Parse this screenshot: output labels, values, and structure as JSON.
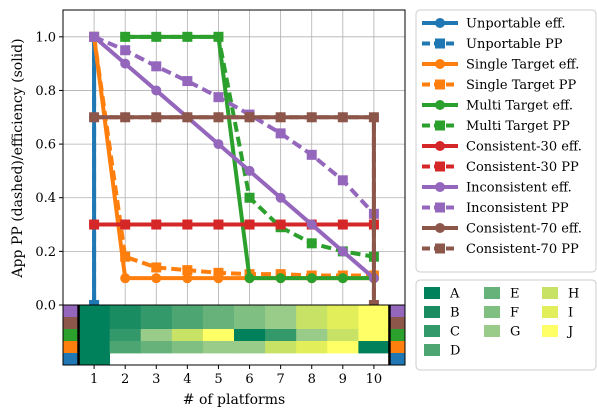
{
  "chart_data": {
    "type": "line",
    "title": "",
    "xlabel": "# of platforms",
    "ylabel": "App PP (dashed)/efficiency (solid)",
    "x": [
      1,
      2,
      3,
      4,
      5,
      6,
      7,
      8,
      9,
      10
    ],
    "xlim": [
      0,
      11
    ],
    "ylim": [
      0,
      1.1
    ],
    "xticks": [
      "1",
      "2",
      "3",
      "4",
      "5",
      "6",
      "7",
      "8",
      "9",
      "10"
    ],
    "yticks": [
      "0.0",
      "0.2",
      "0.4",
      "0.6",
      "0.8",
      "1.0"
    ],
    "grid": true,
    "legend_placement": "outside-right",
    "series": [
      {
        "name": "Unportable eff.",
        "color": "#1f77b4",
        "style": "solid",
        "marker": "circle",
        "points": [
          [
            1,
            1.0
          ],
          [
            1,
            0.0
          ]
        ]
      },
      {
        "name": "Unportable PP",
        "color": "#1f77b4",
        "style": "dashed",
        "marker": "square",
        "points": [
          [
            1,
            1.0
          ],
          [
            1,
            0.0
          ]
        ]
      },
      {
        "name": "Single Target eff.",
        "color": "#ff7f0e",
        "style": "solid",
        "marker": "circle",
        "points": [
          [
            1,
            1.0
          ],
          [
            2,
            0.1
          ],
          [
            3,
            0.1
          ],
          [
            4,
            0.1
          ],
          [
            5,
            0.1
          ],
          [
            6,
            0.1
          ],
          [
            7,
            0.1
          ],
          [
            8,
            0.1
          ],
          [
            9,
            0.1
          ],
          [
            10,
            0.1
          ]
        ]
      },
      {
        "name": "Single Target PP",
        "color": "#ff7f0e",
        "style": "dashed",
        "marker": "square",
        "points": [
          [
            1,
            1.0
          ],
          [
            2,
            0.18
          ],
          [
            3,
            0.14
          ],
          [
            4,
            0.13
          ],
          [
            5,
            0.12
          ],
          [
            6,
            0.115
          ],
          [
            7,
            0.115
          ],
          [
            8,
            0.11
          ],
          [
            9,
            0.11
          ],
          [
            10,
            0.11
          ]
        ]
      },
      {
        "name": "Multi Target eff.",
        "color": "#2ca02c",
        "style": "solid",
        "marker": "circle",
        "points": [
          [
            2,
            1.0
          ],
          [
            3,
            1.0
          ],
          [
            4,
            1.0
          ],
          [
            5,
            1.0
          ],
          [
            6,
            0.1
          ],
          [
            7,
            0.1
          ],
          [
            8,
            0.1
          ],
          [
            9,
            0.1
          ],
          [
            10,
            0.1
          ]
        ]
      },
      {
        "name": "Multi Target PP",
        "color": "#2ca02c",
        "style": "dashed",
        "marker": "square",
        "points": [
          [
            2,
            1.0
          ],
          [
            3,
            1.0
          ],
          [
            4,
            1.0
          ],
          [
            5,
            1.0
          ],
          [
            6,
            0.4
          ],
          [
            7,
            0.29
          ],
          [
            8,
            0.23
          ],
          [
            9,
            0.2
          ],
          [
            10,
            0.18
          ]
        ]
      },
      {
        "name": "Consistent-30 eff.",
        "color": "#d62728",
        "style": "solid",
        "marker": "circle",
        "points": [
          [
            1,
            0.3
          ],
          [
            2,
            0.3
          ],
          [
            3,
            0.3
          ],
          [
            4,
            0.3
          ],
          [
            5,
            0.3
          ],
          [
            6,
            0.3
          ],
          [
            7,
            0.3
          ],
          [
            8,
            0.3
          ],
          [
            9,
            0.3
          ],
          [
            10,
            0.3
          ]
        ]
      },
      {
        "name": "Consistent-30 PP",
        "color": "#d62728",
        "style": "dashed",
        "marker": "square",
        "points": [
          [
            1,
            0.3
          ],
          [
            2,
            0.3
          ],
          [
            3,
            0.3
          ],
          [
            4,
            0.3
          ],
          [
            5,
            0.3
          ],
          [
            6,
            0.3
          ],
          [
            7,
            0.3
          ],
          [
            8,
            0.3
          ],
          [
            9,
            0.3
          ],
          [
            10,
            0.3
          ]
        ]
      },
      {
        "name": "Inconsistent eff.",
        "color": "#9467bd",
        "style": "solid",
        "marker": "circle",
        "points": [
          [
            1,
            1.0
          ],
          [
            2,
            0.9
          ],
          [
            3,
            0.8
          ],
          [
            4,
            0.7
          ],
          [
            5,
            0.6
          ],
          [
            6,
            0.5
          ],
          [
            7,
            0.4
          ],
          [
            8,
            0.3
          ],
          [
            9,
            0.2
          ],
          [
            10,
            0.1
          ]
        ]
      },
      {
        "name": "Inconsistent PP",
        "color": "#9467bd",
        "style": "dashed",
        "marker": "square",
        "points": [
          [
            1,
            1.0
          ],
          [
            2,
            0.95
          ],
          [
            3,
            0.89
          ],
          [
            4,
            0.835
          ],
          [
            5,
            0.775
          ],
          [
            6,
            0.71
          ],
          [
            7,
            0.64
          ],
          [
            8,
            0.56
          ],
          [
            9,
            0.465
          ],
          [
            10,
            0.34
          ]
        ]
      },
      {
        "name": "Consistent-70 eff.",
        "color": "#8c564b",
        "style": "solid",
        "marker": "circle",
        "points": [
          [
            10,
            0.0
          ],
          [
            10,
            0.7
          ],
          [
            9,
            0.7
          ],
          [
            8,
            0.7
          ],
          [
            7,
            0.7
          ],
          [
            6,
            0.7
          ],
          [
            5,
            0.7
          ],
          [
            4,
            0.7
          ],
          [
            3,
            0.7
          ],
          [
            2,
            0.7
          ],
          [
            1,
            0.7
          ]
        ]
      },
      {
        "name": "Consistent-70 PP",
        "color": "#8c564b",
        "style": "dashed",
        "marker": "square",
        "points": [
          [
            1,
            0.7
          ],
          [
            2,
            0.7
          ],
          [
            3,
            0.7
          ],
          [
            4,
            0.7
          ],
          [
            5,
            0.7
          ],
          [
            6,
            0.7
          ],
          [
            7,
            0.7
          ],
          [
            8,
            0.7
          ],
          [
            9,
            0.7
          ],
          [
            10,
            0.7
          ],
          [
            10,
            0.0
          ]
        ]
      }
    ],
    "platform_legend": {
      "entries": [
        {
          "label": "A",
          "color": "#00805b"
        },
        {
          "label": "B",
          "color": "#1a8c62"
        },
        {
          "label": "C",
          "color": "#33996a"
        },
        {
          "label": "D",
          "color": "#4da672"
        },
        {
          "label": "E",
          "color": "#66b27a"
        },
        {
          "label": "F",
          "color": "#80bf82"
        },
        {
          "label": "G",
          "color": "#99cc88"
        },
        {
          "label": "H",
          "color": "#c8e266"
        },
        {
          "label": "I",
          "color": "#e2ef5a"
        },
        {
          "label": "J",
          "color": "#ffff66"
        }
      ]
    },
    "heatmap": {
      "row_colors": [
        "#9467bd",
        "#8c564b",
        "#2ca02c",
        "#ff7f0e",
        "#1f77b4"
      ],
      "rows": [
        [
          "A",
          "B",
          "C",
          "D",
          "E",
          "F",
          "G",
          "H",
          "I",
          "J"
        ],
        [
          "A",
          "B",
          "C",
          "D",
          "E",
          "F",
          "G",
          "H",
          "I",
          "J"
        ],
        [
          "A",
          "C",
          "G",
          "H",
          "J",
          "A",
          "C",
          "G",
          "H",
          "J"
        ],
        [
          "A",
          "D",
          "E",
          "F",
          "G",
          "G",
          "H",
          "I",
          "J",
          "A"
        ],
        [
          "A",
          null,
          null,
          null,
          null,
          null,
          null,
          null,
          null,
          null
        ]
      ]
    }
  }
}
